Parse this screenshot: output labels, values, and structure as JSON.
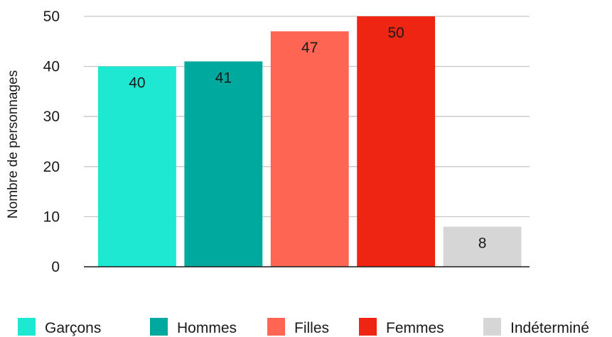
{
  "chart_data": {
    "type": "bar",
    "categories": [
      "Garçons",
      "Hommes",
      "Filles",
      "Femmes",
      "Indéterminé"
    ],
    "values": [
      40,
      41,
      47,
      50,
      8
    ],
    "colors": [
      "#1ee8d2",
      "#00a99d",
      "#ff6553",
      "#ee2512",
      "#d6d6d6"
    ],
    "xlabel": "",
    "ylabel": "Nombre de personnages",
    "ylim": [
      0,
      50
    ],
    "yticks": [
      0,
      10,
      20,
      30,
      40,
      50
    ],
    "grid": true,
    "legend": "bottom",
    "data_labels": true,
    "label_position": "inside-top"
  }
}
